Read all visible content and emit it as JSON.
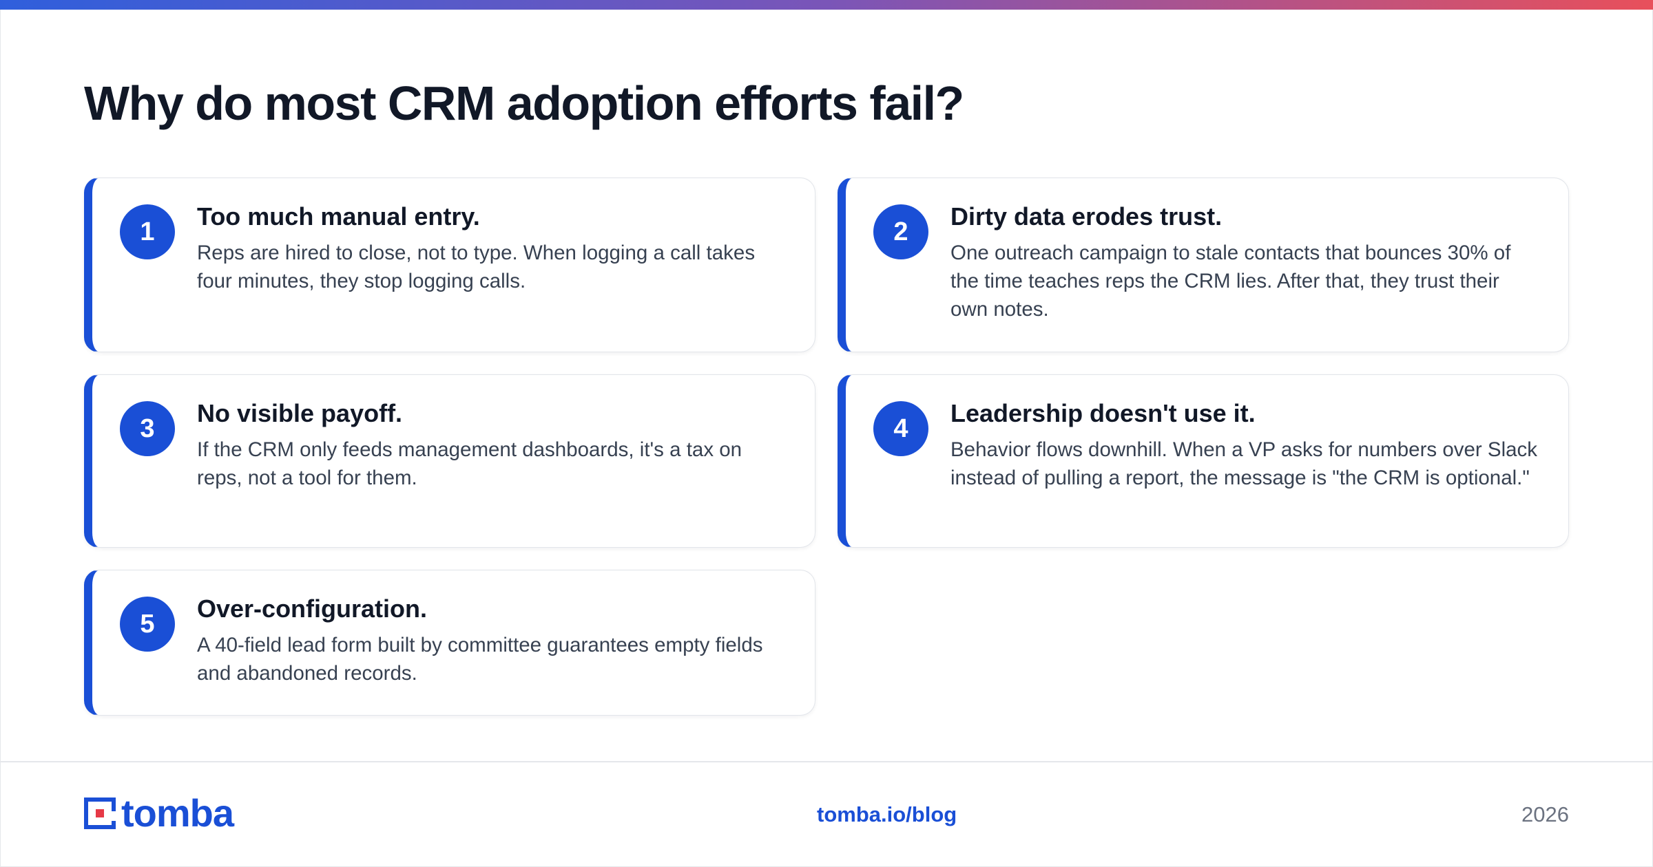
{
  "colors": {
    "accent_blue": "#1a4fd6",
    "accent_red": "#e63946",
    "gradient_start": "#2f5fdc",
    "gradient_end": "#e8505b",
    "text_dark": "#111827",
    "text_body": "#374151",
    "text_muted": "#6b7280"
  },
  "page": {
    "title": "Why do most CRM adoption efforts fail?"
  },
  "cards": [
    {
      "number": "1",
      "title": "Too much manual entry.",
      "body": "Reps are hired to close, not to type. When logging a call takes four minutes, they stop logging calls."
    },
    {
      "number": "2",
      "title": "Dirty data erodes trust.",
      "body": "One outreach campaign to stale contacts that bounces 30% of the time teaches reps the CRM lies. After that, they trust their own notes."
    },
    {
      "number": "3",
      "title": "No visible payoff.",
      "body": "If the CRM only feeds management dashboards, it's a tax on reps, not a tool for them."
    },
    {
      "number": "4",
      "title": "Leadership doesn't use it.",
      "body": "Behavior flows downhill. When a VP asks for numbers over Slack instead of pulling a report, the message is \"the CRM is optional.\""
    },
    {
      "number": "5",
      "title": "Over-configuration.",
      "body": "A 40-field lead form built by committee guarantees empty fields and abandoned records."
    }
  ],
  "footer": {
    "logo_text": "tomba",
    "logo_icon": "tomba-logo-icon",
    "url": "tomba.io/blog",
    "year": "2026"
  }
}
